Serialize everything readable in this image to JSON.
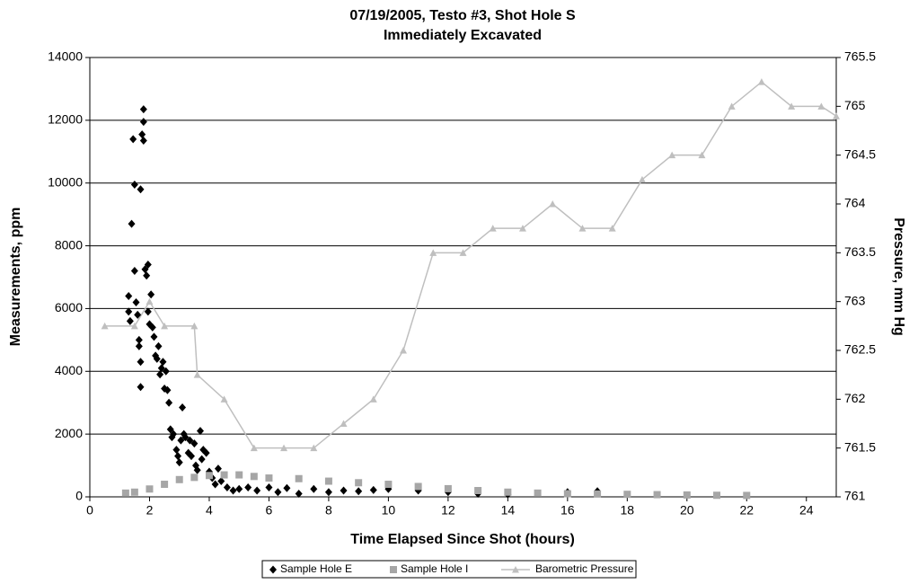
{
  "chart_data": {
    "type": "scatter",
    "title": "07/19/2005, Testo #3, Shot Hole S",
    "subtitle": "Immediately Excavated",
    "xlabel": "Time Elapsed Since Shot (hours)",
    "ylabel": "Measurements, ppm",
    "y2label": "Pressure, mm Hg",
    "xlim": [
      0,
      25
    ],
    "xticks": [
      0,
      2,
      4,
      6,
      8,
      10,
      12,
      14,
      16,
      18,
      20,
      22,
      24
    ],
    "ylim": [
      0,
      14000
    ],
    "yticks": [
      0,
      2000,
      4000,
      6000,
      8000,
      10000,
      12000,
      14000
    ],
    "y2lim": [
      761,
      765.5
    ],
    "y2ticks": [
      761,
      761.5,
      762,
      762.5,
      763,
      763.5,
      764,
      764.5,
      765,
      765.5
    ],
    "grid": true,
    "legend": "bottom",
    "series": [
      {
        "name": "Sample Hole E",
        "type": "scatter",
        "marker": "diamond",
        "color": "#000000",
        "x": [
          1.3,
          1.3,
          1.35,
          1.4,
          1.45,
          1.5,
          1.5,
          1.55,
          1.6,
          1.65,
          1.65,
          1.7,
          1.7,
          1.7,
          1.75,
          1.8,
          1.8,
          1.8,
          1.85,
          1.9,
          1.95,
          1.95,
          2.0,
          2.05,
          2.1,
          2.15,
          2.2,
          2.25,
          2.3,
          2.35,
          2.4,
          2.45,
          2.5,
          2.55,
          2.6,
          2.65,
          2.7,
          2.75,
          2.8,
          2.9,
          2.95,
          3.0,
          3.05,
          3.1,
          3.15,
          3.2,
          3.3,
          3.35,
          3.4,
          3.5,
          3.55,
          3.6,
          3.7,
          3.75,
          3.8,
          3.9,
          4.0,
          4.1,
          4.2,
          4.3,
          4.4,
          4.6,
          4.8,
          5.0,
          5.3,
          5.6,
          6.0,
          6.3,
          6.6,
          7.0,
          7.5,
          8.0,
          8.5,
          9.0,
          9.5,
          10,
          11,
          12,
          13,
          14,
          16,
          17
        ],
        "values": [
          6400,
          5900,
          5600,
          8700,
          11400,
          9950,
          7200,
          6200,
          5800,
          5000,
          4800,
          4300,
          3500,
          9800,
          11550,
          12350,
          11950,
          11350,
          7250,
          7050,
          7400,
          5900,
          5500,
          6450,
          5400,
          5100,
          4500,
          4400,
          4800,
          3900,
          4100,
          4300,
          3450,
          4000,
          3400,
          3000,
          2150,
          1900,
          2000,
          1500,
          1300,
          1100,
          1800,
          2850,
          2000,
          1900,
          1400,
          1800,
          1300,
          1700,
          1000,
          850,
          2100,
          1200,
          1500,
          1400,
          800,
          600,
          400,
          900,
          500,
          300,
          200,
          250,
          300,
          200,
          300,
          150,
          280,
          100,
          250,
          150,
          200,
          180,
          220,
          250,
          200,
          150,
          100,
          80,
          150,
          180
        ]
      },
      {
        "name": "Sample Hole I",
        "type": "scatter",
        "marker": "square",
        "color": "#a6a6a6",
        "x": [
          1.2,
          1.5,
          2,
          2.5,
          3,
          3.5,
          4,
          4.5,
          5,
          5.5,
          6,
          7,
          8,
          9,
          10,
          11,
          12,
          13,
          14,
          15,
          16,
          17,
          18,
          19,
          20,
          21,
          22
        ],
        "values": [
          120,
          150,
          250,
          400,
          550,
          620,
          680,
          700,
          700,
          650,
          600,
          580,
          500,
          450,
          400,
          330,
          260,
          200,
          150,
          120,
          100,
          90,
          80,
          70,
          60,
          50,
          45
        ]
      },
      {
        "name": "Barometric Pressure",
        "type": "line",
        "marker": "triangle",
        "color": "#bfbfbf",
        "axis": "y2",
        "x": [
          0.5,
          1.5,
          2,
          2.5,
          3.5,
          3.6,
          4.5,
          5.5,
          6.5,
          7.5,
          8.5,
          9.5,
          10.5,
          11.5,
          12.5,
          13.5,
          14.5,
          15.5,
          16.5,
          17.5,
          18.5,
          19.5,
          20.5,
          21.5,
          22.5,
          23.5,
          24.5,
          25
        ],
        "values": [
          762.75,
          762.75,
          763,
          762.75,
          762.75,
          762.25,
          762,
          761.5,
          761.5,
          761.5,
          761.75,
          762,
          762.5,
          763.5,
          763.5,
          763.75,
          763.75,
          764,
          763.75,
          763.75,
          764.25,
          764.5,
          764.5,
          765,
          765.25,
          765,
          765,
          764.9
        ]
      }
    ]
  }
}
